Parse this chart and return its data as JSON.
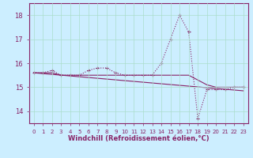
{
  "xlabel": "Windchill (Refroidissement éolien,°C)",
  "background_color": "#cceeff",
  "grid_color": "#aaddcc",
  "line_color": "#882266",
  "xlim": [
    -0.5,
    23.5
  ],
  "ylim": [
    13.5,
    18.5
  ],
  "yticks": [
    14,
    15,
    16,
    17,
    18
  ],
  "xtick_labels": [
    "0",
    "1",
    "2",
    "3",
    "4",
    "5",
    "6",
    "7",
    "8",
    "9",
    "10",
    "11",
    "12",
    "13",
    "14",
    "15",
    "16",
    "17",
    "18",
    "19",
    "20",
    "21",
    "22",
    "23"
  ],
  "series1_x": [
    0,
    1,
    2,
    3,
    4,
    5,
    6,
    7,
    8,
    9,
    10,
    11,
    12,
    13,
    14,
    15,
    16,
    17,
    18,
    19,
    20,
    21,
    22,
    23
  ],
  "series1_y": [
    15.6,
    15.6,
    15.7,
    15.5,
    15.5,
    15.5,
    15.7,
    15.8,
    15.8,
    15.6,
    15.5,
    15.5,
    15.5,
    15.5,
    16.0,
    17.0,
    18.0,
    17.3,
    13.7,
    14.9,
    14.9,
    14.9,
    15.0,
    15.0
  ],
  "series2_x": [
    0,
    1,
    2,
    3,
    4,
    5,
    6,
    7,
    8,
    9,
    10,
    11,
    12,
    13,
    14,
    15,
    16,
    17,
    18,
    19,
    20,
    21,
    22,
    23
  ],
  "series2_y": [
    15.6,
    15.6,
    15.6,
    15.5,
    15.5,
    15.5,
    15.5,
    15.5,
    15.5,
    15.5,
    15.5,
    15.5,
    15.5,
    15.5,
    15.5,
    15.5,
    15.5,
    15.5,
    15.3,
    15.1,
    15.0,
    15.0,
    15.0,
    15.0
  ],
  "series3_x": [
    0,
    23
  ],
  "series3_y": [
    15.6,
    14.85
  ],
  "xlabel_fontsize": 6,
  "xtick_fontsize": 5,
  "ytick_fontsize": 6
}
